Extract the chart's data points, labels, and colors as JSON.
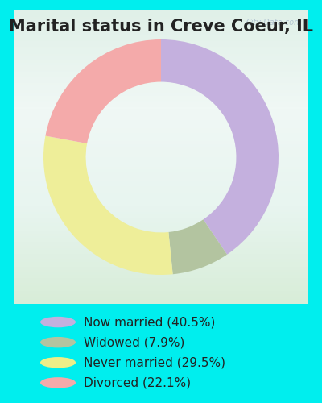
{
  "title": "Marital status in Creve Coeur, IL",
  "slices": [
    40.5,
    7.9,
    29.5,
    22.1
  ],
  "labels": [
    "Now married (40.5%)",
    "Widowed (7.9%)",
    "Never married (29.5%)",
    "Divorced (22.1%)"
  ],
  "colors": [
    "#c4b0de",
    "#b3c4a0",
    "#eeee99",
    "#f4aaaa"
  ],
  "legend_colors": [
    "#c4b0de",
    "#b3c4a0",
    "#eeee88",
    "#f4aaaa"
  ],
  "background_outer": "#00eeee",
  "chart_bg_light": "#e8f5ee",
  "chart_bg_dark": "#c8e8d8",
  "title_fontsize": 15,
  "watermark": "City-Data.com",
  "start_angle": 90,
  "donut_width": 0.36,
  "legend_fontsize": 11
}
